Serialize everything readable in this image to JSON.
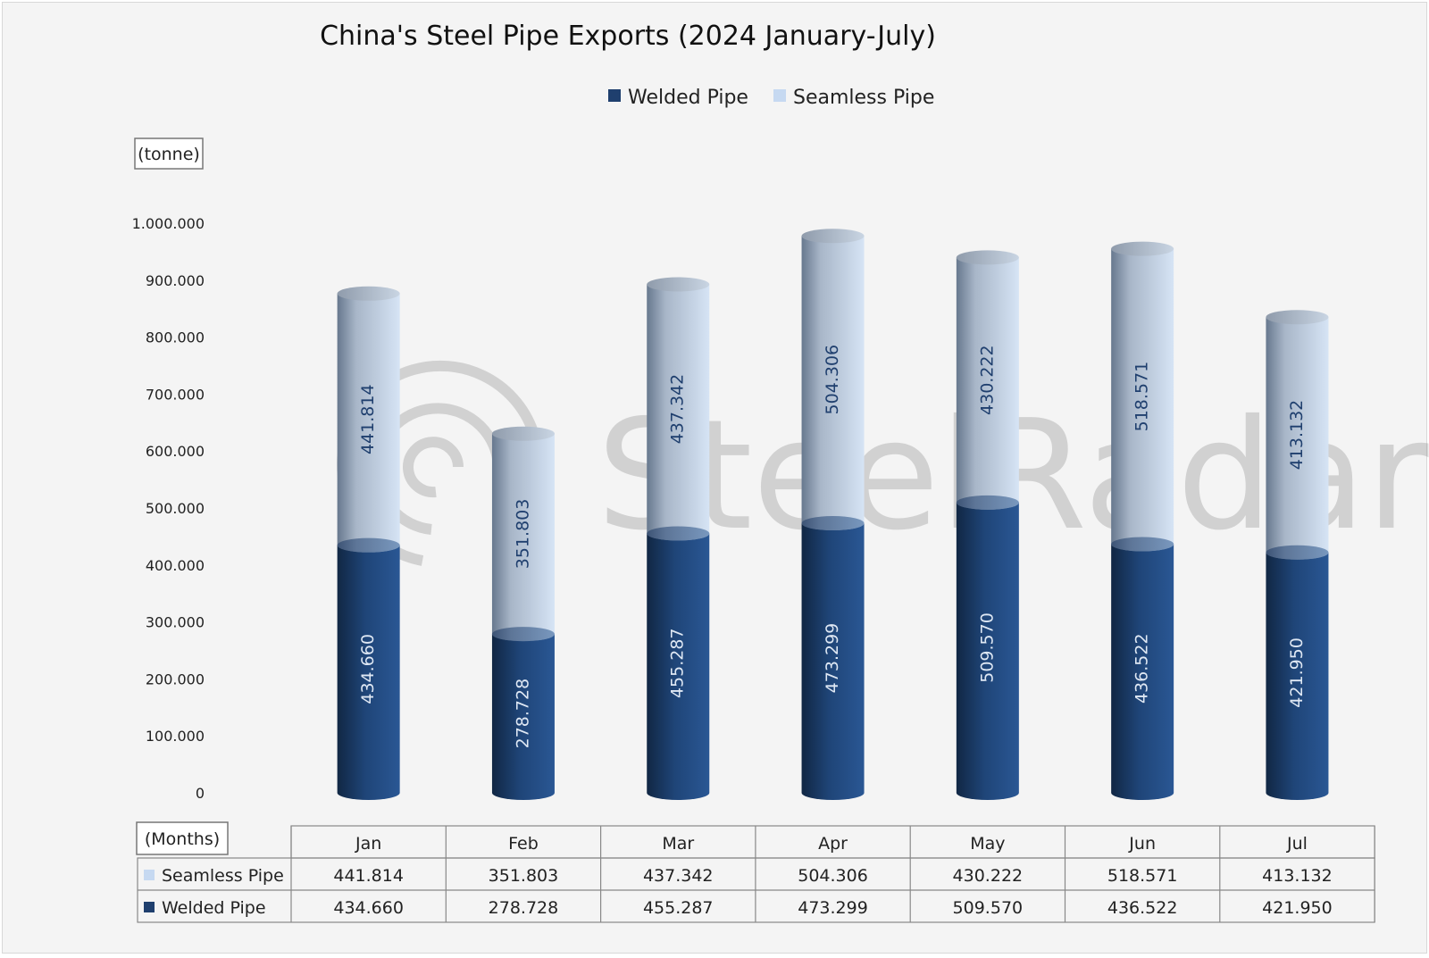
{
  "chart_data": {
    "type": "bar",
    "stacked": true,
    "title": "China's Steel Pipe Exports (2024 January-July)",
    "unit_label": "(tonne)",
    "x_axis_label": "(Months)",
    "categories": [
      "Jan",
      "Feb",
      "Mar",
      "Apr",
      "May",
      "Jun",
      "Jul"
    ],
    "series": [
      {
        "name": "Welded Pipe",
        "color": "#1f3f6e",
        "values": [
          434660,
          278728,
          455287,
          473299,
          509570,
          436522,
          421950
        ],
        "labels": [
          "434.660",
          "278.728",
          "455.287",
          "473.299",
          "509.570",
          "436.522",
          "421.950"
        ]
      },
      {
        "name": "Seamless Pipe",
        "color": "#c6d9f1",
        "values": [
          441814,
          351803,
          437342,
          504306,
          430222,
          518571,
          413132
        ],
        "labels": [
          "441.814",
          "351.803",
          "437.342",
          "504.306",
          "430.222",
          "518.571",
          "413.132"
        ]
      }
    ],
    "ylim": [
      0,
      1000000
    ],
    "yticks": [
      0,
      100000,
      200000,
      300000,
      400000,
      500000,
      600000,
      700000,
      800000,
      900000,
      1000000
    ],
    "ytick_labels": [
      "0",
      "100.000",
      "200.000",
      "300.000",
      "400.000",
      "500.000",
      "600.000",
      "700.000",
      "800.000",
      "900.000",
      "1.000.000"
    ],
    "legend": {
      "position": "top-center",
      "entries": [
        "Welded Pipe",
        "Seamless Pipe"
      ]
    },
    "data_table": {
      "rows": [
        {
          "name": "Seamless Pipe",
          "values": [
            "441.814",
            "351.803",
            "437.342",
            "504.306",
            "430.222",
            "518.571",
            "413.132"
          ]
        },
        {
          "name": "Welded Pipe",
          "values": [
            "434.660",
            "278.728",
            "455.287",
            "473.299",
            "509.570",
            "436.522",
            "421.950"
          ]
        }
      ]
    },
    "grid": false,
    "watermark": "SteelRadar"
  }
}
